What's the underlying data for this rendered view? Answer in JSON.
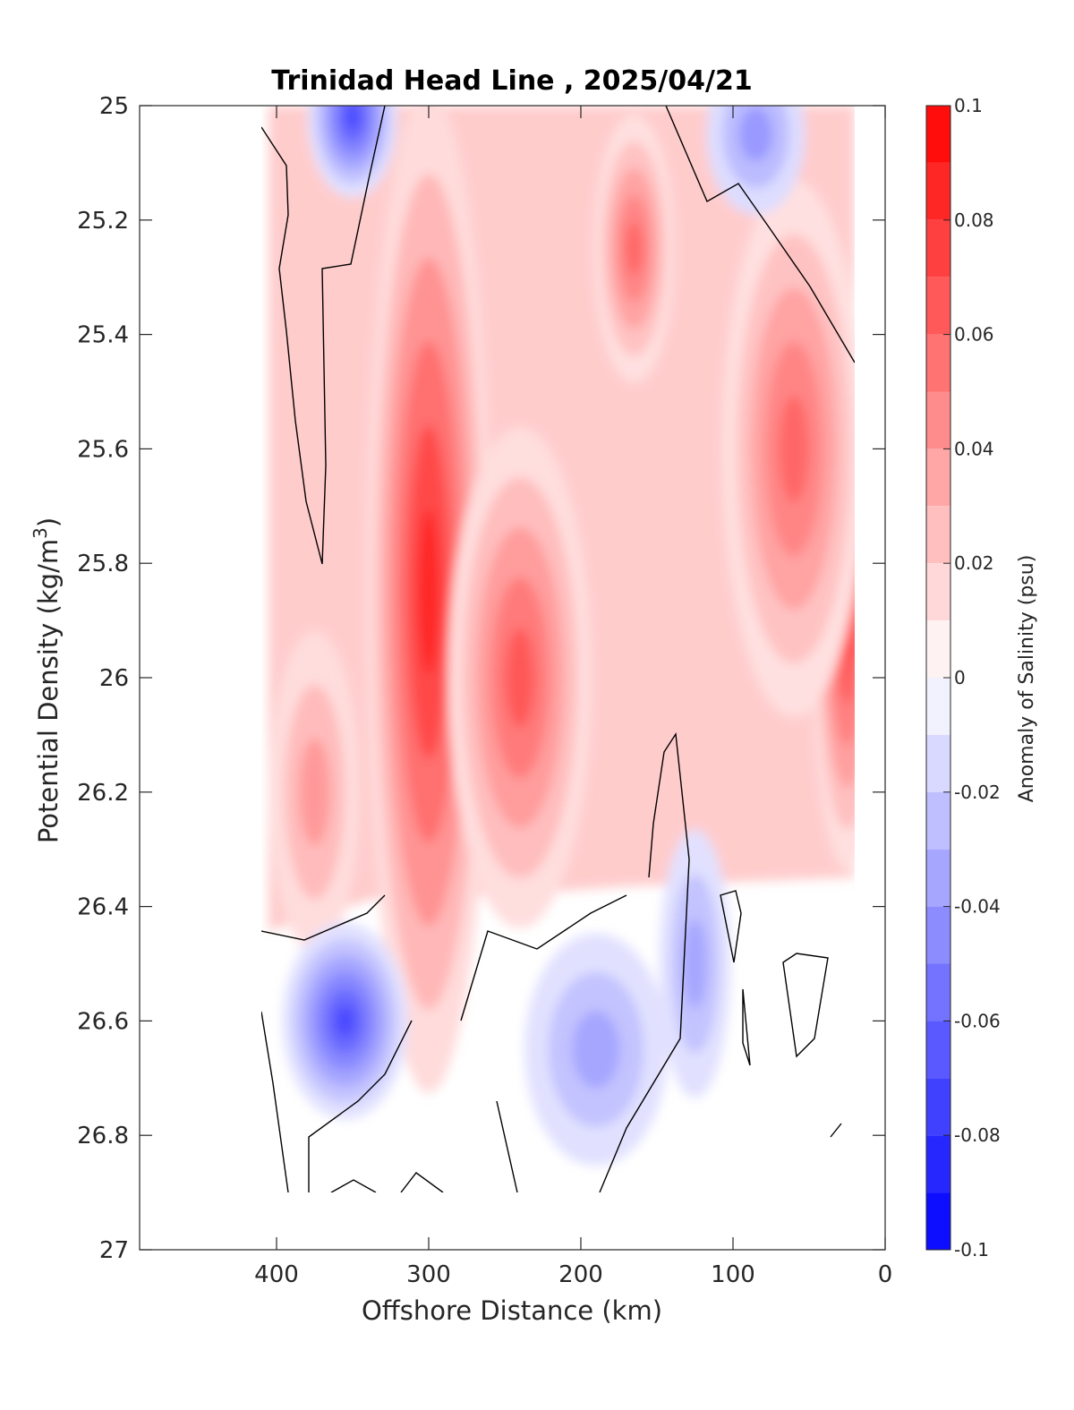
{
  "chart_data": {
    "type": "heatmap",
    "subtype": "filled-contour",
    "title": "Trinidad Head Line , 2025/04/21",
    "xlabel": "Offshore Distance (km)",
    "ylabel": "Potential Density (kg/m",
    "ylabel_superscript": "3",
    "ylabel_suffix": ")",
    "xlim": [
      490,
      0
    ],
    "x_reversed": true,
    "ylim": [
      25,
      27
    ],
    "y_reversed": true,
    "xticks": [
      400,
      300,
      200,
      100,
      0
    ],
    "xtick_labels": [
      "400",
      "300",
      "200",
      "100",
      "0"
    ],
    "yticks": [
      25,
      25.2,
      25.4,
      25.6,
      25.8,
      26,
      26.2,
      26.4,
      26.6,
      26.8,
      27
    ],
    "ytick_labels": [
      "25",
      "25.2",
      "25.4",
      "25.6",
      "25.8",
      "26",
      "26.2",
      "26.4",
      "26.6",
      "26.8",
      "27"
    ],
    "colorbar": {
      "label": "Anomaly of Salinity (psu)",
      "range": [
        -0.1,
        0.1
      ],
      "tick_values": [
        0.1,
        0.08,
        0.06,
        0.04,
        0.02,
        0,
        -0.02,
        -0.04,
        -0.06,
        -0.08,
        -0.1
      ],
      "tick_labels": [
        "0.1",
        "0.08",
        "0.06",
        "0.04",
        "0.02",
        "0",
        "-0.02",
        "-0.04",
        "-0.06",
        "-0.08",
        "-0.1"
      ],
      "levels": [
        0.1,
        0.09,
        0.08,
        0.07,
        0.06,
        0.05,
        0.04,
        0.03,
        0.02,
        0.01,
        0,
        -0.01,
        -0.02,
        -0.03,
        -0.04,
        -0.05,
        -0.06,
        -0.07,
        -0.08,
        -0.09,
        -0.1
      ]
    },
    "data_extent": {
      "x": [
        410,
        20
      ],
      "y": [
        25,
        26.9
      ]
    },
    "features": [
      {
        "kind": "high",
        "x": 300,
        "y": 25.85,
        "value": 0.085
      },
      {
        "kind": "high",
        "x": 240,
        "y": 26.0,
        "value": 0.065
      },
      {
        "kind": "high",
        "x": 165,
        "y": 25.25,
        "value": 0.06
      },
      {
        "kind": "high",
        "x": 25,
        "y": 25.9,
        "value": 0.075
      },
      {
        "kind": "high",
        "x": 60,
        "y": 25.6,
        "value": 0.06
      },
      {
        "kind": "high",
        "x": 375,
        "y": 26.2,
        "value": 0.04
      },
      {
        "kind": "low",
        "x": 355,
        "y": 26.6,
        "value": -0.07
      },
      {
        "kind": "low",
        "x": 350,
        "y": 25.02,
        "value": -0.07
      },
      {
        "kind": "low",
        "x": 125,
        "y": 26.5,
        "value": -0.035
      },
      {
        "kind": "low",
        "x": 190,
        "y": 26.65,
        "value": -0.035
      },
      {
        "kind": "low",
        "x": 85,
        "y": 25.05,
        "value": -0.04
      }
    ]
  }
}
